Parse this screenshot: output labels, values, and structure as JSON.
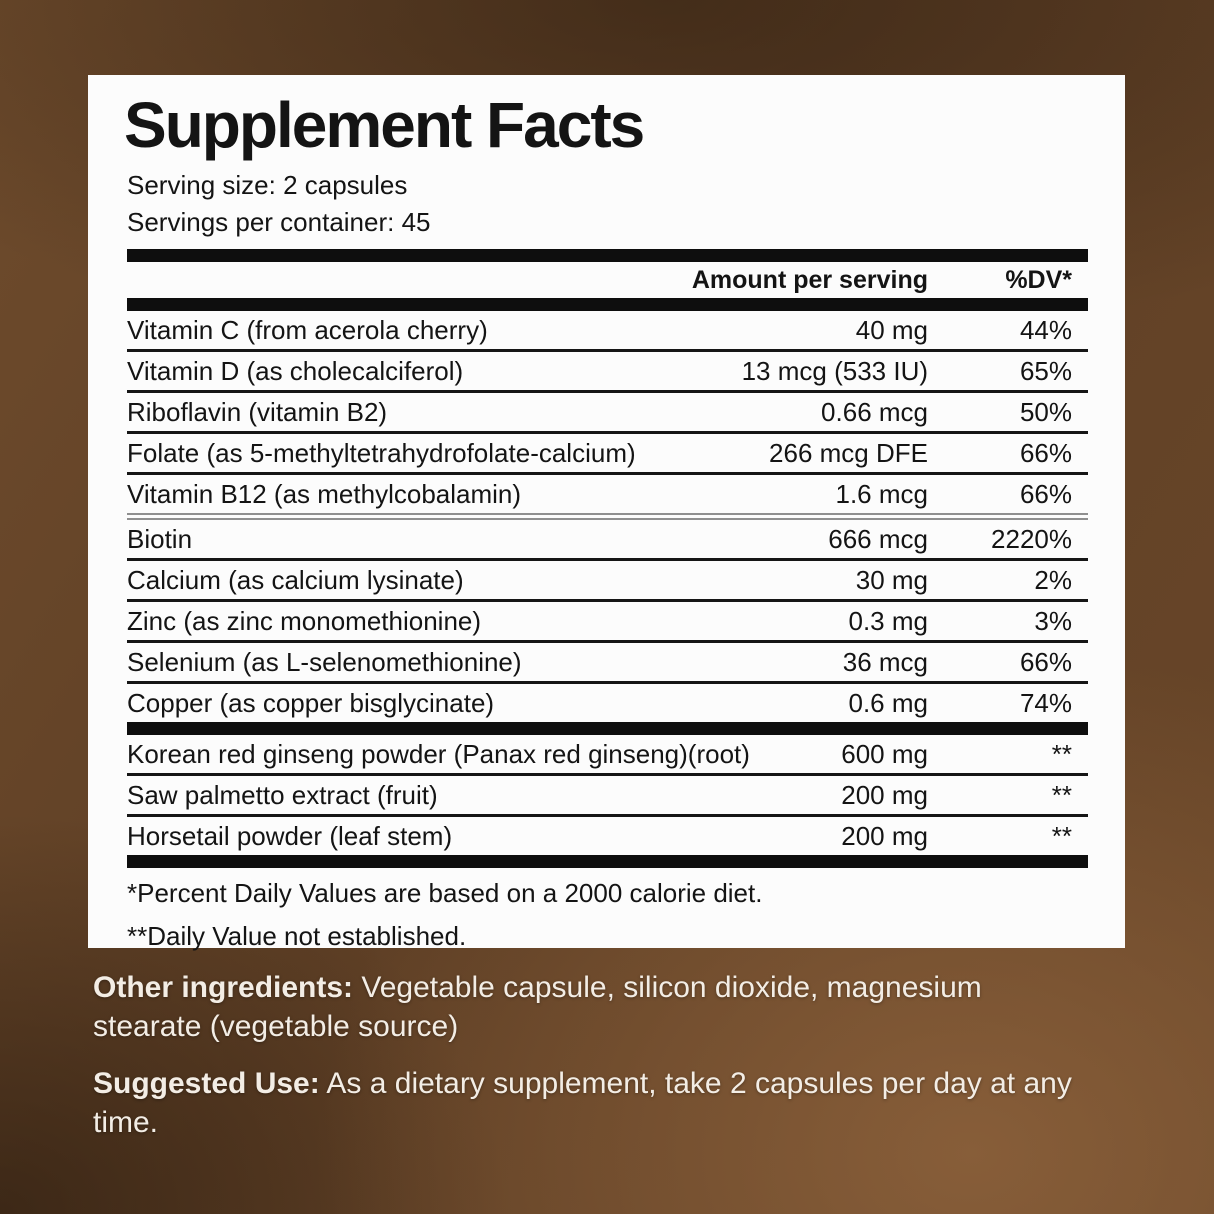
{
  "colors": {
    "panel_background": "#fcfcfc",
    "panel_text": "#141414",
    "divider_black": "#0e0e0e",
    "double_line_gray": "#8f8f8f",
    "background_brown_light": "#7d563a",
    "background_brown_dark": "#4a3120",
    "below_text": "#f3ede5"
  },
  "panel": {
    "title": "Supplement Facts",
    "serving_size": "Serving size: 2 capsules",
    "servings_per_container": "Servings per container: 45",
    "columns": {
      "amount": "Amount per serving",
      "dv": "%DV*"
    },
    "nutrients": [
      {
        "name": "Vitamin C (from acerola cherry)",
        "amount": "40 mg",
        "dv": "44%"
      },
      {
        "name": "Vitamin D (as cholecalciferol)",
        "amount": "13 mcg (533 IU)",
        "dv": "65%"
      },
      {
        "name": "Riboflavin (vitamin B2)",
        "amount": "0.66 mcg",
        "dv": "50%"
      },
      {
        "name": "Folate (as 5-methyltetrahydrofolate-calcium)",
        "amount": "266 mcg DFE",
        "dv": "66%"
      },
      {
        "name": "Vitamin B12 (as methylcobalamin)",
        "amount": "1.6 mcg",
        "dv": "66%"
      },
      {
        "name": "Biotin",
        "amount": "666 mcg",
        "dv": "2220%"
      },
      {
        "name": "Calcium (as calcium lysinate)",
        "amount": "30 mg",
        "dv": "2%"
      },
      {
        "name": "Zinc (as zinc monomethionine)",
        "amount": "0.3 mg",
        "dv": "3%"
      },
      {
        "name": "Selenium (as L-selenomethionine)",
        "amount": "36 mcg",
        "dv": "66%"
      },
      {
        "name": "Copper (as copper bisglycinate)",
        "amount": "0.6 mg",
        "dv": "74%"
      }
    ],
    "botanicals": [
      {
        "name": "Korean red ginseng powder (Panax red ginseng)(root)",
        "amount": "600 mg",
        "dv": "**"
      },
      {
        "name": "Saw palmetto extract (fruit)",
        "amount": "200 mg",
        "dv": "**"
      },
      {
        "name": "Horsetail powder (leaf stem)",
        "amount": "200 mg",
        "dv": "**"
      }
    ],
    "footnotes": [
      "*Percent Daily Values are based on a 2000 calorie diet.",
      "**Daily Value not established."
    ]
  },
  "below": {
    "other_ingredients_label": "Other ingredients:",
    "other_ingredients_text": " Vegetable capsule, silicon dioxide, magnesium stearate (vegetable source)",
    "suggested_use_label": "Suggested Use:",
    "suggested_use_text": " As a dietary supplement, take 2 capsules per day at any time."
  }
}
